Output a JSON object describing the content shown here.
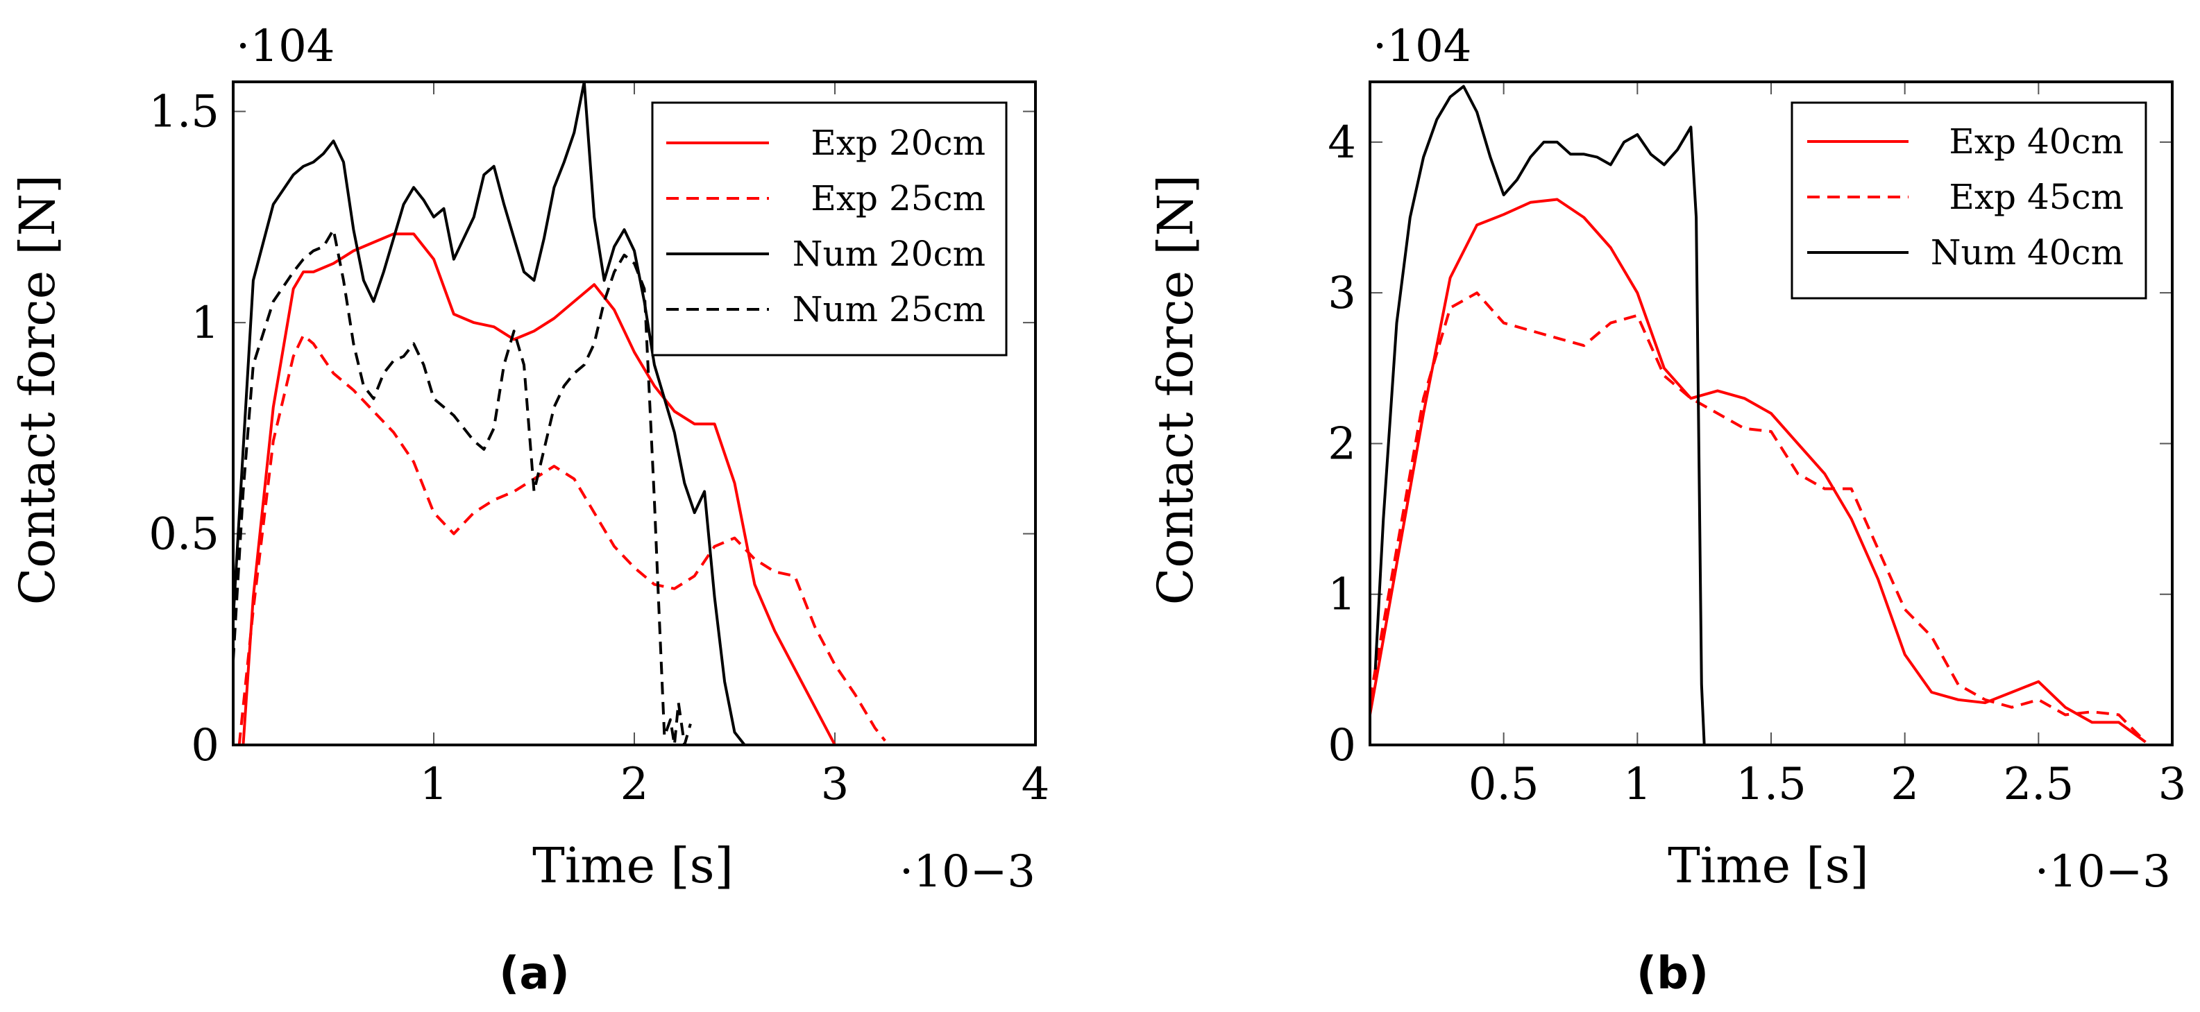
{
  "chart_data": [
    {
      "type": "line",
      "panel_label": "(a)",
      "xlabel": "Time [s]",
      "ylabel": "Contact force [N]",
      "x_multiplier": "·10−3",
      "y_multiplier": "·104",
      "xlim": [
        0,
        4
      ],
      "ylim": [
        0,
        1.57
      ],
      "xticks": [
        1,
        2,
        3,
        4
      ],
      "xtick_labels": [
        "1",
        "2",
        "3",
        "4"
      ],
      "yticks": [
        0,
        0.5,
        1,
        1.5
      ],
      "ytick_labels": [
        "0",
        "0.5",
        "1",
        "1.5"
      ],
      "grid": false,
      "legend_position": "top-right",
      "series": [
        {
          "name": "Exp 20cm",
          "color": "#ff0000",
          "dash": "solid",
          "x": [
            0.05,
            0.1,
            0.2,
            0.3,
            0.35,
            0.4,
            0.5,
            0.6,
            0.7,
            0.8,
            0.9,
            1.0,
            1.1,
            1.2,
            1.3,
            1.4,
            1.5,
            1.6,
            1.7,
            1.8,
            1.9,
            2.0,
            2.1,
            2.2,
            2.3,
            2.4,
            2.5,
            2.6,
            2.7,
            2.8,
            2.9,
            3.0
          ],
          "y": [
            0,
            0.35,
            0.8,
            1.08,
            1.12,
            1.12,
            1.14,
            1.17,
            1.19,
            1.21,
            1.21,
            1.15,
            1.02,
            1.0,
            0.99,
            0.96,
            0.98,
            1.01,
            1.05,
            1.09,
            1.03,
            0.93,
            0.85,
            0.79,
            0.76,
            0.76,
            0.62,
            0.38,
            0.27,
            0.18,
            0.09,
            0
          ]
        },
        {
          "name": "Exp 25cm",
          "color": "#ff0000",
          "dash": "dashed",
          "x": [
            0.03,
            0.1,
            0.2,
            0.3,
            0.35,
            0.4,
            0.5,
            0.6,
            0.7,
            0.8,
            0.9,
            1.0,
            1.1,
            1.2,
            1.3,
            1.4,
            1.5,
            1.6,
            1.7,
            1.8,
            1.9,
            2.0,
            2.1,
            2.2,
            2.3,
            2.4,
            2.5,
            2.6,
            2.7,
            2.8,
            2.9,
            3.0,
            3.1,
            3.2,
            3.25
          ],
          "y": [
            0,
            0.32,
            0.72,
            0.92,
            0.97,
            0.95,
            0.88,
            0.84,
            0.79,
            0.74,
            0.67,
            0.55,
            0.5,
            0.55,
            0.58,
            0.6,
            0.63,
            0.66,
            0.63,
            0.55,
            0.47,
            0.42,
            0.38,
            0.37,
            0.4,
            0.47,
            0.49,
            0.44,
            0.41,
            0.4,
            0.28,
            0.19,
            0.12,
            0.04,
            0.01
          ]
        },
        {
          "name": "Num 20cm",
          "color": "#000000",
          "dash": "solid",
          "x": [
            0.0,
            0.05,
            0.1,
            0.2,
            0.3,
            0.35,
            0.4,
            0.45,
            0.5,
            0.55,
            0.6,
            0.65,
            0.7,
            0.75,
            0.8,
            0.85,
            0.9,
            0.95,
            1.0,
            1.05,
            1.1,
            1.15,
            1.2,
            1.25,
            1.3,
            1.35,
            1.4,
            1.45,
            1.5,
            1.55,
            1.6,
            1.65,
            1.7,
            1.75,
            1.8,
            1.85,
            1.9,
            1.95,
            2.0,
            2.05,
            2.1,
            2.15,
            2.2,
            2.25,
            2.3,
            2.35,
            2.4,
            2.45,
            2.5,
            2.55
          ],
          "y": [
            0.3,
            0.7,
            1.1,
            1.28,
            1.35,
            1.37,
            1.38,
            1.4,
            1.43,
            1.38,
            1.22,
            1.1,
            1.05,
            1.12,
            1.2,
            1.28,
            1.32,
            1.29,
            1.25,
            1.27,
            1.15,
            1.2,
            1.25,
            1.35,
            1.37,
            1.28,
            1.2,
            1.12,
            1.1,
            1.2,
            1.32,
            1.38,
            1.45,
            1.57,
            1.25,
            1.1,
            1.18,
            1.22,
            1.17,
            1.05,
            0.9,
            0.82,
            0.74,
            0.62,
            0.55,
            0.6,
            0.35,
            0.15,
            0.03,
            0.0
          ]
        },
        {
          "name": "Num 25cm",
          "color": "#000000",
          "dash": "dashed",
          "x": [
            0.0,
            0.05,
            0.1,
            0.2,
            0.3,
            0.35,
            0.4,
            0.45,
            0.5,
            0.55,
            0.6,
            0.65,
            0.7,
            0.75,
            0.8,
            0.85,
            0.9,
            0.95,
            1.0,
            1.05,
            1.1,
            1.15,
            1.2,
            1.25,
            1.3,
            1.35,
            1.4,
            1.45,
            1.5,
            1.55,
            1.6,
            1.65,
            1.7,
            1.75,
            1.8,
            1.85,
            1.9,
            1.95,
            2.0,
            2.05,
            2.1,
            2.12,
            2.15,
            2.18,
            2.2,
            2.22,
            2.25,
            2.28
          ],
          "y": [
            0.2,
            0.6,
            0.9,
            1.05,
            1.12,
            1.15,
            1.17,
            1.18,
            1.22,
            1.1,
            0.95,
            0.85,
            0.82,
            0.88,
            0.91,
            0.92,
            0.95,
            0.9,
            0.82,
            0.8,
            0.78,
            0.75,
            0.72,
            0.7,
            0.75,
            0.9,
            0.98,
            0.9,
            0.6,
            0.7,
            0.8,
            0.85,
            0.88,
            0.9,
            0.95,
            1.05,
            1.12,
            1.16,
            1.14,
            1.08,
            0.58,
            0.35,
            0.02,
            0.06,
            0.0,
            0.1,
            0.0,
            0.05
          ]
        }
      ]
    },
    {
      "type": "line",
      "panel_label": "(b)",
      "xlabel": "Time [s]",
      "ylabel": "Contact force [N]",
      "x_multiplier": "·10−3",
      "y_multiplier": "·104",
      "xlim": [
        0,
        3
      ],
      "ylim": [
        0,
        4.4
      ],
      "xticks": [
        0.5,
        1,
        1.5,
        2,
        2.5,
        3
      ],
      "xtick_labels": [
        "0.5",
        "1",
        "1.5",
        "2",
        "2.5",
        "3"
      ],
      "yticks": [
        0,
        1,
        2,
        3,
        4
      ],
      "ytick_labels": [
        "0",
        "1",
        "2",
        "3",
        "4"
      ],
      "grid": false,
      "legend_position": "top-right",
      "series": [
        {
          "name": "Exp 40cm",
          "color": "#ff0000",
          "dash": "solid",
          "x": [
            0.0,
            0.1,
            0.2,
            0.3,
            0.4,
            0.5,
            0.6,
            0.7,
            0.8,
            0.9,
            1.0,
            1.1,
            1.2,
            1.3,
            1.4,
            1.5,
            1.6,
            1.7,
            1.8,
            1.9,
            2.0,
            2.1,
            2.2,
            2.3,
            2.4,
            2.5,
            2.6,
            2.7,
            2.8,
            2.9
          ],
          "y": [
            0.2,
            1.2,
            2.2,
            3.1,
            3.45,
            3.52,
            3.6,
            3.62,
            3.5,
            3.3,
            3.0,
            2.5,
            2.3,
            2.35,
            2.3,
            2.2,
            2.0,
            1.8,
            1.5,
            1.1,
            0.6,
            0.35,
            0.3,
            0.28,
            0.35,
            0.42,
            0.25,
            0.15,
            0.15,
            0.02
          ]
        },
        {
          "name": "Exp 45cm",
          "color": "#ff0000",
          "dash": "dashed",
          "x": [
            0.0,
            0.1,
            0.2,
            0.3,
            0.4,
            0.5,
            0.6,
            0.7,
            0.8,
            0.9,
            1.0,
            1.1,
            1.2,
            1.3,
            1.4,
            1.5,
            1.6,
            1.7,
            1.8,
            1.9,
            2.0,
            2.1,
            2.2,
            2.3,
            2.4,
            2.5,
            2.6,
            2.7,
            2.8,
            2.9
          ],
          "y": [
            0.3,
            1.3,
            2.3,
            2.9,
            3.0,
            2.8,
            2.75,
            2.7,
            2.65,
            2.8,
            2.85,
            2.45,
            2.3,
            2.2,
            2.1,
            2.08,
            1.8,
            1.7,
            1.7,
            1.3,
            0.9,
            0.72,
            0.4,
            0.3,
            0.25,
            0.3,
            0.2,
            0.22,
            0.2,
            0.02
          ]
        },
        {
          "name": "Num 40cm",
          "color": "#000000",
          "dash": "solid",
          "x": [
            0.02,
            0.05,
            0.1,
            0.15,
            0.2,
            0.25,
            0.3,
            0.35,
            0.4,
            0.45,
            0.5,
            0.55,
            0.6,
            0.65,
            0.7,
            0.75,
            0.8,
            0.85,
            0.9,
            0.95,
            1.0,
            1.05,
            1.1,
            1.15,
            1.2,
            1.22,
            1.24,
            1.25
          ],
          "y": [
            0.5,
            1.5,
            2.8,
            3.5,
            3.9,
            4.15,
            4.3,
            4.37,
            4.2,
            3.9,
            3.65,
            3.75,
            3.9,
            4.0,
            4.0,
            3.92,
            3.92,
            3.9,
            3.85,
            4.0,
            4.05,
            3.92,
            3.85,
            3.95,
            4.1,
            3.5,
            0.4,
            0.0
          ]
        }
      ]
    }
  ]
}
